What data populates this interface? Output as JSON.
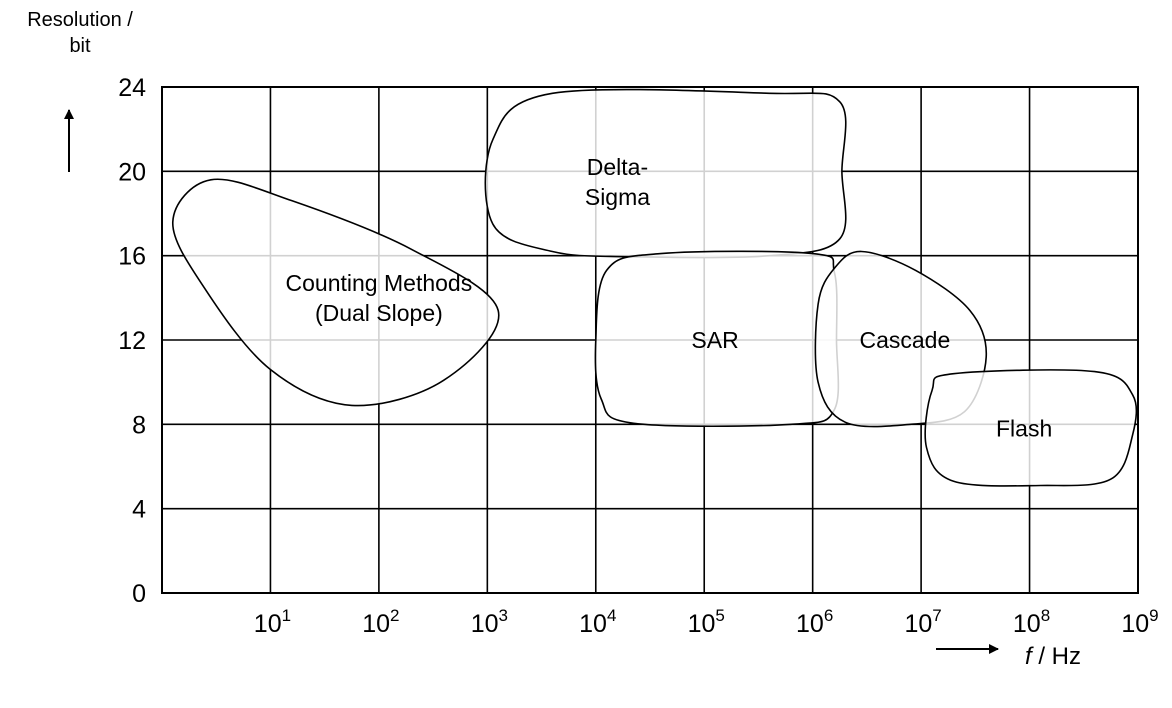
{
  "chart_data": {
    "type": "region-map",
    "ylabel_lines": [
      "Resolution /",
      "bit"
    ],
    "xlabel_symbol": "f",
    "xlabel_unit": " / Hz",
    "x_scale": "log10",
    "x_range_exponent": [
      0,
      9
    ],
    "y_range": [
      0,
      24
    ],
    "grid": true,
    "y_ticks": [
      "0",
      "4",
      "8",
      "12",
      "16",
      "20",
      "24"
    ],
    "y_tick_values": [
      0,
      4,
      8,
      12,
      16,
      20,
      24
    ],
    "x_ticks": [
      {
        "base": "10",
        "exp": "1",
        "value_exponent": 1
      },
      {
        "base": "10",
        "exp": "2",
        "value_exponent": 2
      },
      {
        "base": "10",
        "exp": "3",
        "value_exponent": 3
      },
      {
        "base": "10",
        "exp": "4",
        "value_exponent": 4
      },
      {
        "base": "10",
        "exp": "5",
        "value_exponent": 5
      },
      {
        "base": "10",
        "exp": "6",
        "value_exponent": 6
      },
      {
        "base": "10",
        "exp": "7",
        "value_exponent": 7
      },
      {
        "base": "10",
        "exp": "8",
        "value_exponent": 8
      },
      {
        "base": "10",
        "exp": "9",
        "value_exponent": 9
      }
    ],
    "regions": [
      {
        "id": "delta-sigma",
        "label_lines": [
          "Delta-",
          "Sigma"
        ],
        "label_pos_exponent": [
          4.2,
          19.5
        ],
        "outline_exponent": [
          [
            3.6,
            23.7
          ],
          [
            5.6,
            23.7
          ],
          [
            6.25,
            23.3
          ],
          [
            6.27,
            20.0
          ],
          [
            6.25,
            16.8
          ],
          [
            5.6,
            16.0
          ],
          [
            4.3,
            15.95
          ],
          [
            3.6,
            16.2
          ],
          [
            3.05,
            17.5
          ],
          [
            3.05,
            21.5
          ]
        ]
      },
      {
        "id": "counting-methods",
        "label_lines": [
          "Counting Methods",
          "(Dual Slope)"
        ],
        "label_pos_exponent": [
          2.0,
          14.0
        ],
        "outline_exponent": [
          [
            0.45,
            19.6
          ],
          [
            1.2,
            18.6
          ],
          [
            2.3,
            16.3
          ],
          [
            3.1,
            13.4
          ],
          [
            2.6,
            10.1
          ],
          [
            1.75,
            8.9
          ],
          [
            1.0,
            10.6
          ],
          [
            0.4,
            14.4
          ],
          [
            0.1,
            17.6
          ]
        ]
      },
      {
        "id": "sar",
        "label_lines": [
          "SAR"
        ],
        "label_pos_exponent": [
          5.1,
          12.0
        ],
        "outline_exponent": [
          [
            4.6,
            16.1
          ],
          [
            6.0,
            16.1
          ],
          [
            6.2,
            15.2
          ],
          [
            6.22,
            12.0
          ],
          [
            6.2,
            8.7
          ],
          [
            5.8,
            8.0
          ],
          [
            4.35,
            8.05
          ],
          [
            4.05,
            9.2
          ],
          [
            4.0,
            12.0
          ],
          [
            4.1,
            15.3
          ]
        ]
      },
      {
        "id": "cascade",
        "label_lines": [
          "Cascade"
        ],
        "label_pos_exponent": [
          6.85,
          12.0
        ],
        "outline_exponent": [
          [
            6.45,
            16.2
          ],
          [
            6.95,
            15.3
          ],
          [
            7.45,
            13.4
          ],
          [
            7.6,
            11.2
          ],
          [
            7.4,
            8.6
          ],
          [
            6.9,
            8.0
          ],
          [
            6.3,
            8.1
          ],
          [
            6.05,
            10.0
          ],
          [
            6.05,
            13.7
          ],
          [
            6.2,
            15.4
          ]
        ]
      },
      {
        "id": "flash",
        "label_lines": [
          "Flash"
        ],
        "label_pos_exponent": [
          7.95,
          7.8
        ],
        "outline_exponent": [
          [
            7.3,
            10.4
          ],
          [
            8.6,
            10.5
          ],
          [
            8.95,
            9.4
          ],
          [
            8.95,
            7.5
          ],
          [
            8.75,
            5.4
          ],
          [
            8.1,
            5.1
          ],
          [
            7.3,
            5.3
          ],
          [
            7.05,
            6.9
          ],
          [
            7.1,
            9.6
          ]
        ]
      }
    ]
  }
}
